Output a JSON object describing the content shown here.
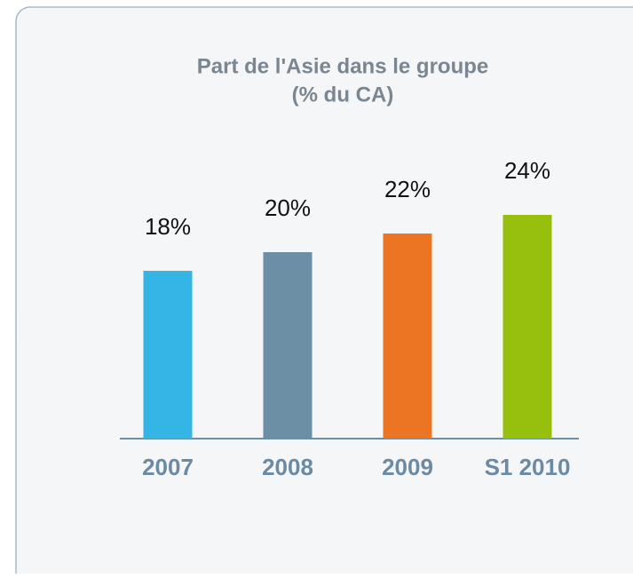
{
  "chart_data": {
    "type": "bar",
    "title": "Part de l'Asie dans le groupe",
    "subtitle": "(% du CA)",
    "categories": [
      "2007",
      "2008",
      "2009",
      "S1 2010"
    ],
    "values": [
      18,
      20,
      22,
      24
    ],
    "value_labels": [
      "18%",
      "20%",
      "22%",
      "24%"
    ],
    "colors": [
      "#35b5e5",
      "#6d8fa6",
      "#ec7523",
      "#97bf0d"
    ]
  }
}
